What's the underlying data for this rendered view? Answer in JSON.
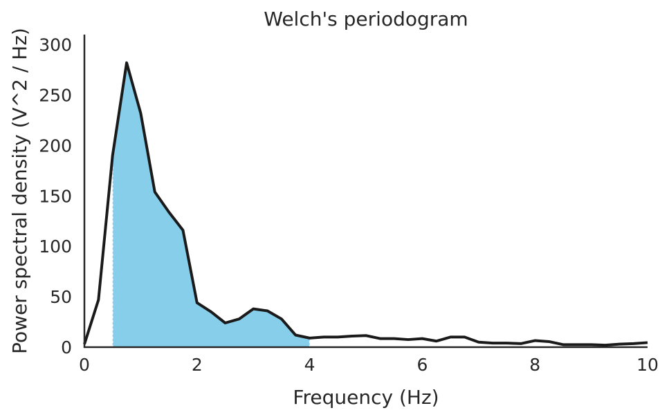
{
  "chart_data": {
    "type": "area",
    "title": "Welch's periodogram",
    "xlabel": "Frequency (Hz)",
    "ylabel": "Power spectral density (V^2 / Hz)",
    "xlim": [
      0,
      10
    ],
    "ylim": [
      0,
      310
    ],
    "x_ticks": [
      0,
      2,
      4,
      6,
      8,
      10
    ],
    "y_ticks": [
      0,
      50,
      100,
      150,
      200,
      250,
      300
    ],
    "grid": false,
    "shaded_band": [
      0.5,
      4
    ],
    "colors": {
      "line": "#1a1a1a",
      "fill": "#87ceeb",
      "axis": "#262626"
    },
    "series": [
      {
        "x": [
          0,
          0.25,
          0.5,
          0.75,
          1.0,
          1.25,
          1.5,
          1.75,
          2.0,
          2.25,
          2.5,
          2.75,
          3.0,
          3.25,
          3.5,
          3.75,
          4.0,
          4.25,
          4.5,
          4.75,
          5.0,
          5.25,
          5.5,
          5.75,
          6.0,
          6.25,
          6.5,
          6.75,
          7.0,
          7.25,
          7.5,
          7.75,
          8.0,
          8.25,
          8.5,
          8.75,
          9.0,
          9.25,
          9.5,
          9.75,
          10.0
        ],
        "y": [
          3,
          47,
          190,
          282,
          232,
          154,
          134,
          116,
          44,
          35,
          24,
          28,
          38,
          36,
          28,
          12,
          9,
          10,
          10,
          11,
          11.5,
          8.5,
          8.5,
          7.5,
          8.5,
          6,
          10,
          10,
          5,
          4,
          4,
          3.5,
          6.5,
          5.5,
          2.5,
          2.5,
          2.5,
          2,
          3,
          3.5,
          4.5
        ]
      }
    ]
  }
}
